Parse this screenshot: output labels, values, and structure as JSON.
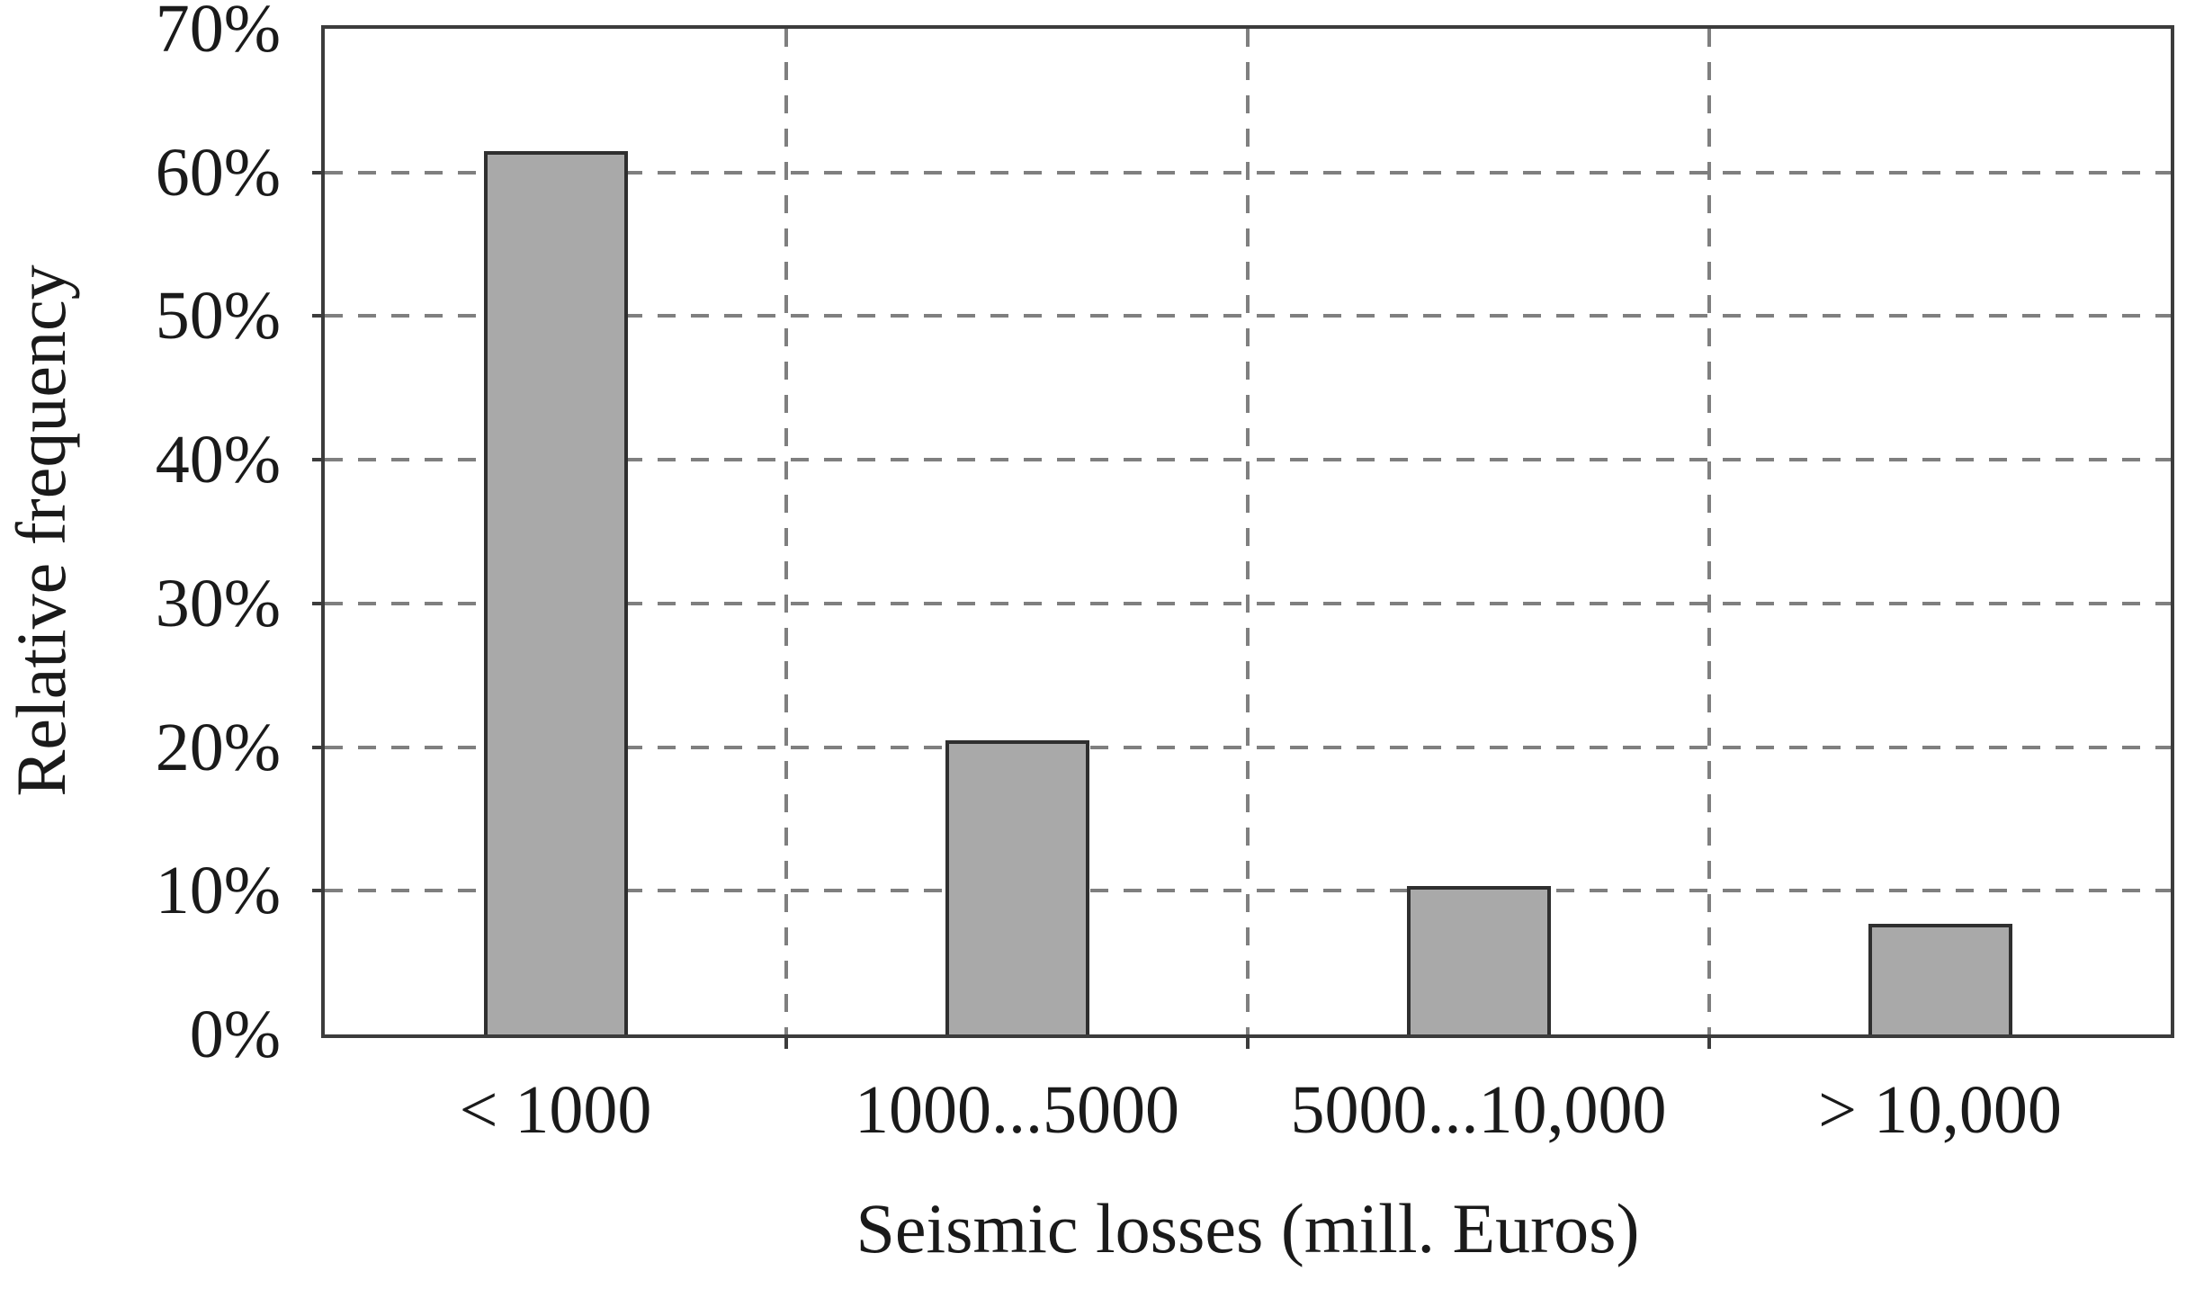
{
  "chart_data": {
    "type": "bar",
    "title": "",
    "xlabel": "Seismic losses (mill. Euros)",
    "ylabel": "Relative frequency",
    "categories": [
      "< 1000",
      "1000...5000",
      "5000...10,000",
      "> 10,000"
    ],
    "values": [
      61.5,
      20.5,
      10.3,
      7.7
    ],
    "value_unit": "%",
    "ylim": [
      0,
      70
    ],
    "yticks": [
      0,
      10,
      20,
      30,
      40,
      50,
      60,
      70
    ],
    "ytick_labels": [
      "0%",
      "10%",
      "20%",
      "30%",
      "40%",
      "50%",
      "60%",
      "70%"
    ],
    "grid": {
      "horizontal": "dashed at each 10% from 10% to 60%",
      "vertical": "dashed at internal category boundaries",
      "style": "dashed"
    },
    "legend": null,
    "bar_outline": true
  },
  "style": {
    "background": "#ffffff",
    "text": "#1a1a1a",
    "frame": "#3c3c3c",
    "gridline": "#7f7f7f",
    "bar_fill": "#a9a9a9",
    "bar_border": "#2f2f2f"
  }
}
